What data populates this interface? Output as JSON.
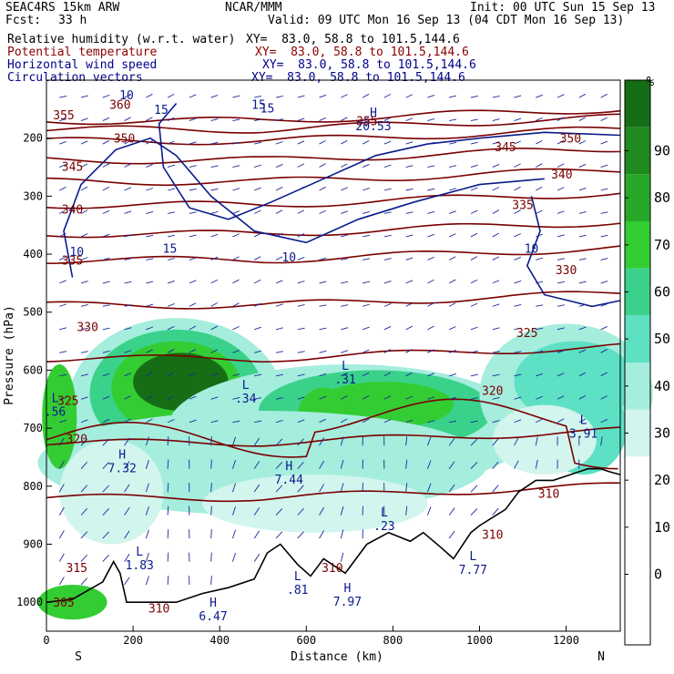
{
  "header": {
    "model": "SEAC4RS 15km ARW",
    "org": "NCAR/MMM",
    "init": "Init: 00 UTC Sun 15 Sep 13",
    "fcst_label": "Fcst:",
    "fcst_value": "33 h",
    "valid": "Valid: 09 UTC Mon 16 Sep 13 (04 CDT Mon 16 Sep 13)"
  },
  "fields": [
    {
      "name": "Relative humidity (w.r.t. water)",
      "xy": "XY=  83.0, 58.8 to 101.5,144.6",
      "color": "#000000"
    },
    {
      "name": "Potential temperature",
      "xy": "XY=  83.0, 58.8 to 101.5,144.6",
      "color": "#8b0000"
    },
    {
      "name": "Horizontal wind speed",
      "xy": "XY=  83.0, 58.8 to 101.5,144.6",
      "color": "#00008b"
    },
    {
      "name": "Circulation vectors",
      "xy": "XY=  83.0, 58.8 to 101.5,144.6",
      "color": "#00008b"
    }
  ],
  "colorbar": {
    "unit": "%",
    "labels": [
      "0",
      "10",
      "20",
      "30",
      "40",
      "50",
      "60",
      "70",
      "80",
      "90"
    ],
    "colors": [
      "#ffffff",
      "#ffffff",
      "#ffffff",
      "#ffffff",
      "#d2f5ee",
      "#a5eddd",
      "#5ee0c4",
      "#3ad28a",
      "#33cc33",
      "#28a828",
      "#1f8a1f",
      "#156e15"
    ]
  },
  "chart_data": {
    "type": "cross-section",
    "xlabel": "Distance (km)",
    "ylabel": "Pressure (hPa)",
    "xlim": [
      0,
      1325
    ],
    "ylim": [
      1050,
      100
    ],
    "xticks": [
      0,
      200,
      400,
      600,
      800,
      1000,
      1200
    ],
    "yticks": [
      200,
      300,
      400,
      500,
      600,
      700,
      800,
      900,
      1000
    ],
    "endpoints": {
      "left": "S",
      "right": "N"
    },
    "theta_labels": [
      {
        "t": "355",
        "x": 40,
        "p": 160
      },
      {
        "t": "360",
        "x": 170,
        "p": 142
      },
      {
        "t": "350",
        "x": 180,
        "p": 200
      },
      {
        "t": "345",
        "x": 60,
        "p": 248
      },
      {
        "t": "340",
        "x": 60,
        "p": 322
      },
      {
        "t": "335",
        "x": 60,
        "p": 410
      },
      {
        "t": "330",
        "x": 95,
        "p": 525
      },
      {
        "t": "325",
        "x": 50,
        "p": 652
      },
      {
        "t": "320",
        "x": 70,
        "p": 718
      },
      {
        "t": "315",
        "x": 70,
        "p": 940
      },
      {
        "t": "305",
        "x": 40,
        "p": 1000
      },
      {
        "t": "310",
        "x": 260,
        "p": 1010
      },
      {
        "t": "355",
        "x": 740,
        "p": 170
      },
      {
        "t": "350",
        "x": 1210,
        "p": 200
      },
      {
        "t": "345",
        "x": 1060,
        "p": 215
      },
      {
        "t": "340",
        "x": 1190,
        "p": 262
      },
      {
        "t": "335",
        "x": 1100,
        "p": 314
      },
      {
        "t": "330",
        "x": 1200,
        "p": 427
      },
      {
        "t": "325",
        "x": 1110,
        "p": 535
      },
      {
        "t": "320",
        "x": 1030,
        "p": 635
      },
      {
        "t": "310",
        "x": 1160,
        "p": 812
      },
      {
        "t": "310",
        "x": 1030,
        "p": 883
      },
      {
        "t": "310",
        "x": 660,
        "p": 940
      }
    ],
    "theta_lines": [
      [
        170,
        360
      ],
      [
        185,
        352
      ],
      [
        205,
        346
      ],
      [
        238,
        338
      ],
      [
        275,
        333
      ],
      [
        315,
        330
      ],
      [
        365,
        326
      ],
      [
        410,
        323
      ],
      [
        488,
        320
      ],
      [
        580,
        319
      ],
      [
        725,
        314
      ],
      [
        820,
        312
      ]
    ],
    "wind_labels": [
      {
        "t": "10",
        "x": 185,
        "p": 125
      },
      {
        "t": "15",
        "x": 265,
        "p": 150
      },
      {
        "t": "15",
        "x": 490,
        "p": 142
      },
      {
        "t": "15",
        "x": 510,
        "p": 148
      },
      {
        "t": "10",
        "x": 70,
        "p": 395
      },
      {
        "t": "15",
        "x": 285,
        "p": 390
      },
      {
        "t": "10",
        "x": 560,
        "p": 405
      },
      {
        "t": "10",
        "x": 1120,
        "p": 390
      }
    ],
    "extrema": [
      {
        "kind": "H",
        "value": "20.53",
        "x": 755,
        "p": 175
      },
      {
        "kind": "L",
        "value": ".56",
        "x": 20,
        "p": 668
      },
      {
        "kind": "L",
        "value": ".34",
        "x": 460,
        "p": 645
      },
      {
        "kind": "L",
        "value": ".31",
        "x": 690,
        "p": 612
      },
      {
        "kind": "L",
        "value": "3.91",
        "x": 1240,
        "p": 705
      },
      {
        "kind": "H",
        "value": "7.32",
        "x": 175,
        "p": 765
      },
      {
        "kind": "H",
        "value": "7.44",
        "x": 560,
        "p": 785
      },
      {
        "kind": "L",
        "value": ".23",
        "x": 780,
        "p": 865
      },
      {
        "kind": "L",
        "value": "1.83",
        "x": 215,
        "p": 932
      },
      {
        "kind": "L",
        "value": "7.77",
        "x": 985,
        "p": 940
      },
      {
        "kind": "L",
        "value": ".81",
        "x": 580,
        "p": 975
      },
      {
        "kind": "H",
        "value": "7.97",
        "x": 695,
        "p": 995
      },
      {
        "kind": "H",
        "value": "6.47",
        "x": 385,
        "p": 1020
      }
    ],
    "terrain": [
      [
        0,
        1000
      ],
      [
        60,
        995
      ],
      [
        130,
        965
      ],
      [
        155,
        930
      ],
      [
        170,
        950
      ],
      [
        185,
        1000
      ],
      [
        300,
        1000
      ],
      [
        360,
        985
      ],
      [
        420,
        975
      ],
      [
        480,
        960
      ],
      [
        510,
        915
      ],
      [
        540,
        900
      ],
      [
        580,
        935
      ],
      [
        610,
        955
      ],
      [
        640,
        925
      ],
      [
        690,
        950
      ],
      [
        740,
        900
      ],
      [
        790,
        880
      ],
      [
        840,
        895
      ],
      [
        870,
        880
      ],
      [
        910,
        905
      ],
      [
        940,
        925
      ],
      [
        980,
        880
      ],
      [
        1000,
        868
      ],
      [
        1060,
        840
      ],
      [
        1090,
        810
      ],
      [
        1130,
        790
      ],
      [
        1170,
        790
      ],
      [
        1210,
        780
      ],
      [
        1250,
        770
      ],
      [
        1280,
        770
      ],
      [
        1300,
        775
      ],
      [
        1325,
        780
      ]
    ]
  }
}
